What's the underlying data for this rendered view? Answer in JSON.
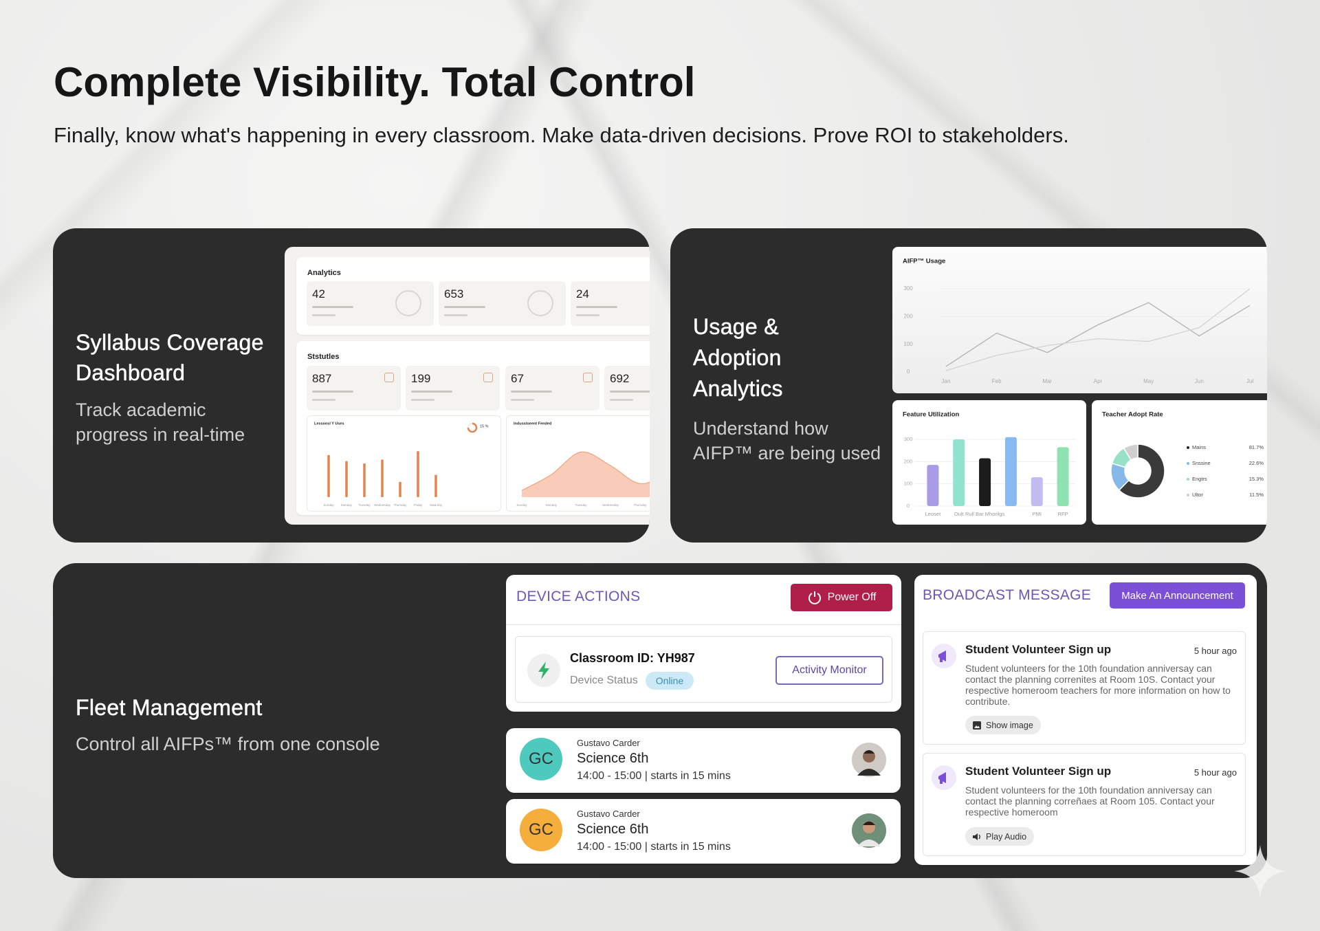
{
  "header": {
    "title": "Complete Visibility. Total Control",
    "subtitle": "Finally, know what's happening in every classroom. Make data-driven decisions. Prove ROI to stakeholders."
  },
  "cards": [
    {
      "title": "Syllabus Coverage Dashboard",
      "description": "Track academic progress in real-time"
    },
    {
      "title": "Usage & Adoption Analytics",
      "description": "Understand how AIFP™ are being used"
    },
    {
      "title": "Fleet Management",
      "description": "Control all AIFPs™ from one console"
    }
  ],
  "syllabus_dashboard": {
    "analytics": {
      "title": "Analytics",
      "stats": [
        42,
        653,
        24
      ]
    },
    "statistics": {
      "title": "Ststutles",
      "stats": [
        887,
        199,
        67,
        692
      ]
    },
    "lessons_chart": {
      "type": "bar",
      "title": "Lessonsl Y Uses",
      "progress_label": "15 %",
      "categories": [
        "Sunday",
        "Monday",
        "Tuesday",
        "Wednesday",
        "Thursday",
        "Friday",
        "Saturday"
      ],
      "values": [
        55,
        47,
        44,
        49,
        20,
        60,
        29
      ],
      "ylim": [
        0,
        70
      ],
      "color": "#e3834f"
    },
    "trend_chart": {
      "type": "area",
      "title": "Indusstoeent Fended",
      "categories": [
        "Sunday",
        "Monday",
        "Tuesday",
        "Wednesday",
        "Thursday",
        "Friday",
        "Saturday"
      ],
      "values": [
        6,
        20,
        40,
        28,
        12,
        22,
        34
      ],
      "ylim": [
        0,
        50
      ],
      "color": "#f3a27d"
    }
  },
  "usage_analytics": {
    "usage_chart": {
      "type": "line",
      "title": "AIFP™ Usage",
      "categories": [
        "Jan",
        "Feb",
        "Mar",
        "Apr",
        "May",
        "Jun",
        "Jul"
      ],
      "series": [
        {
          "color": "#b5b5b5",
          "values": [
            20,
            140,
            70,
            170,
            250,
            130,
            240
          ]
        },
        {
          "color": "#d4d4d4",
          "values": [
            5,
            60,
            95,
            120,
            110,
            160,
            300
          ]
        }
      ],
      "ylim": [
        0,
        300
      ],
      "yticks": [
        0,
        100,
        200,
        300
      ]
    },
    "feature_chart": {
      "type": "bar",
      "title": "Feature Utilization",
      "categories": [
        "Leoset",
        "Oult",
        "Rull Bar Mhorilgs",
        null,
        "PMI",
        "RFP"
      ],
      "values": [
        185,
        300,
        215,
        310,
        130,
        265
      ],
      "colors": [
        "#a99be6",
        "#8fe3cf",
        "#1c1c1c",
        "#8ab8f0",
        "#c2bdf0",
        "#8fe3b3"
      ],
      "ylim": [
        0,
        300
      ],
      "yticks": [
        0,
        100,
        200,
        300
      ]
    },
    "adoption_chart": {
      "type": "donut",
      "title": "Teacher Adopt Rate",
      "categories": [
        "Mains",
        "Snssine",
        "Engtrs",
        "Ultor"
      ],
      "values": [
        81.7,
        22.6,
        15.3,
        11.5
      ],
      "value_labels": [
        "81.7%",
        "22.6%",
        "15.3%",
        "11.5%"
      ],
      "colors": [
        "#3a3a3a",
        "#84b9ea",
        "#98e0c6",
        "#cfcfcf"
      ]
    }
  },
  "fleet": {
    "device_actions": {
      "title": "DEVICE ACTIONS",
      "power_button": "Power Off",
      "classroom": "Classroom ID: YH987",
      "status_label": "Device Status",
      "status": "Online",
      "monitor_button": "Activity Monitor"
    },
    "schedule": [
      {
        "initials": "GC",
        "teacher": "Gustavo Carder",
        "class": "Science 6th",
        "time": "14:00 - 15:00 | starts in 15 mins"
      },
      {
        "initials": "GC",
        "teacher": "Gustavo Carder",
        "class": "Science 6th",
        "time": "14:00 - 15:00 | starts in 15 mins"
      }
    ],
    "broadcast": {
      "title": "BROADCAST MESSAGE",
      "button": "Make An Announcement",
      "messages": [
        {
          "title": "Student Volunteer Sign up",
          "time": "5 hour ago",
          "body": "Student volunteers for the 10th foundation anniversay can contact the planning correnites at Room 10S. Contact your respective homeroom teachers for more information on how to contribute.",
          "action": "Show image"
        },
        {
          "title": "Student Volunteer Sign up",
          "time": "5 hour ago",
          "body": "Student volunteers for the 10th foundation anniversay can contact the planning correñaes at Room 105. Contact your respective homeroom",
          "action": "Play Audio"
        }
      ]
    }
  }
}
